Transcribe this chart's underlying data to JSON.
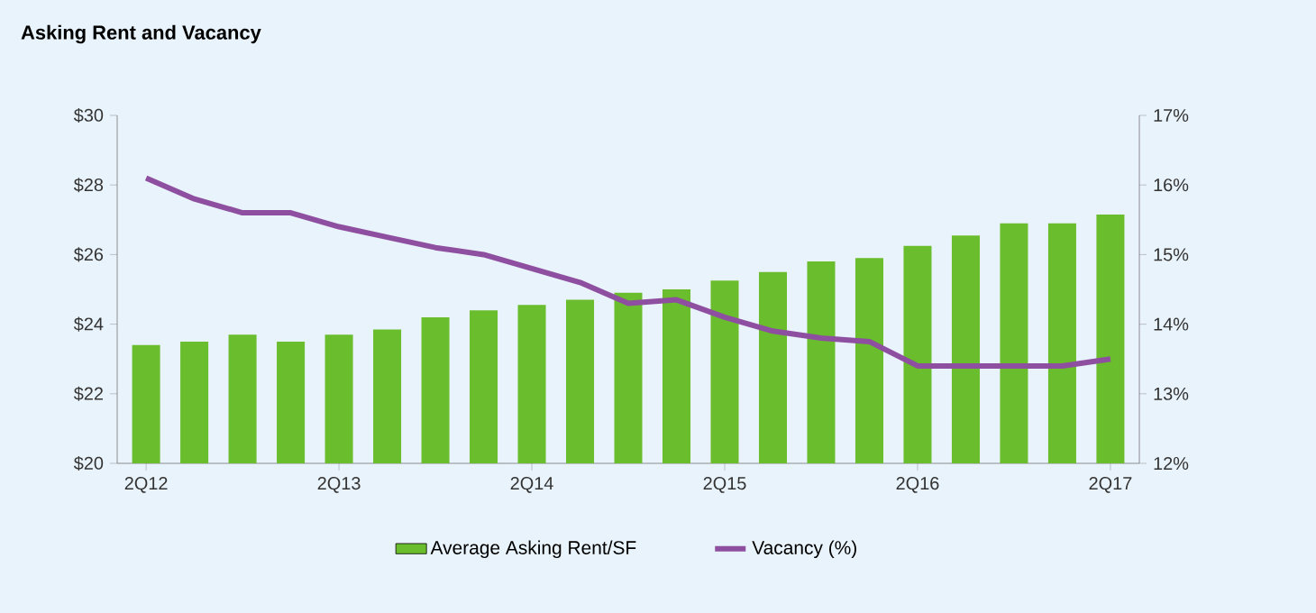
{
  "chart_data": {
    "type": "bar",
    "title": "Asking Rent and Vacancy",
    "categories": [
      "2Q12",
      null,
      null,
      null,
      "2Q13",
      null,
      null,
      null,
      "2Q14",
      null,
      null,
      null,
      "2Q15",
      null,
      null,
      null,
      "2Q16",
      null,
      null,
      null,
      "2Q17"
    ],
    "series": [
      {
        "name": "Average Asking Rent/SF",
        "color": "#6abd2c",
        "values": [
          23.4,
          23.5,
          23.7,
          23.5,
          23.7,
          23.85,
          24.2,
          24.4,
          24.55,
          24.7,
          24.9,
          25.0,
          25.25,
          25.5,
          25.8,
          25.9,
          26.25,
          26.55,
          26.9,
          26.9,
          27.15
        ]
      },
      {
        "name": "Vacancy (%)",
        "type": "line",
        "axis": "y2",
        "color": "#8e4fa0",
        "values": [
          16.1,
          15.8,
          15.6,
          15.6,
          15.4,
          15.25,
          15.1,
          15.0,
          14.8,
          14.6,
          14.3,
          14.35,
          14.1,
          13.9,
          13.8,
          13.75,
          13.4,
          13.4,
          13.4,
          13.4,
          13.5
        ]
      }
    ],
    "ylim": [
      20,
      30
    ],
    "yticks": [
      {
        "value": 20,
        "label": "$20"
      },
      {
        "value": 22,
        "label": "$22"
      },
      {
        "value": 24,
        "label": "$24"
      },
      {
        "value": 26,
        "label": "$26"
      },
      {
        "value": 28,
        "label": "$28"
      },
      {
        "value": 30,
        "label": "$30"
      }
    ],
    "y2lim": [
      12,
      17
    ],
    "y2ticks": [
      {
        "value": 12,
        "label": "12%"
      },
      {
        "value": 13,
        "label": "13%"
      },
      {
        "value": 14,
        "label": "14%"
      },
      {
        "value": 15,
        "label": "15%"
      },
      {
        "value": 16,
        "label": "16%"
      },
      {
        "value": 17,
        "label": "17%"
      }
    ],
    "legend": "bottom",
    "grid": false,
    "marker": "none",
    "line_style": "solid"
  }
}
